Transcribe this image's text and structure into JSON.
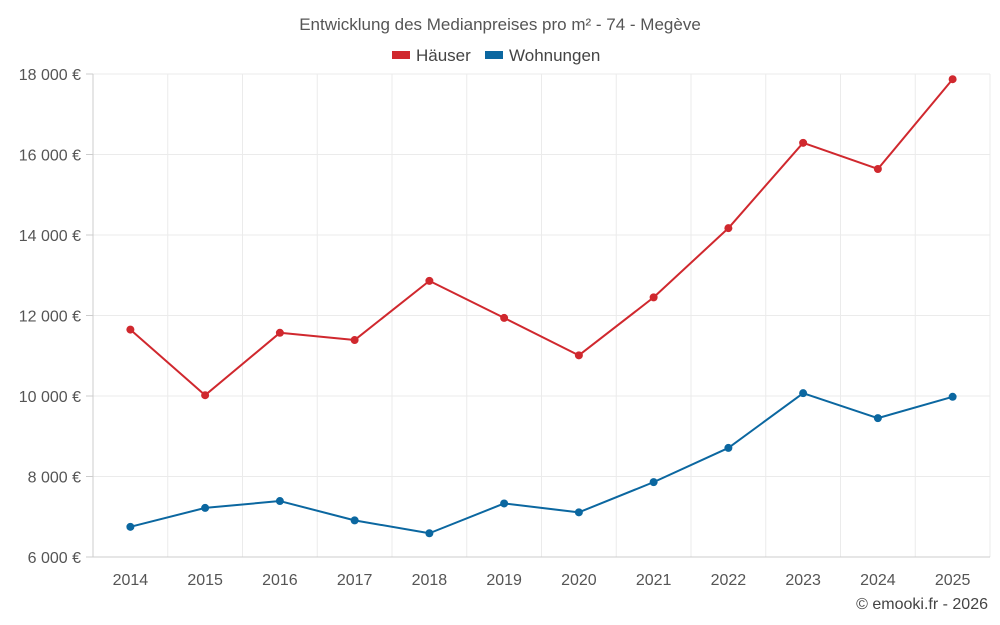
{
  "chart_data": {
    "type": "line",
    "title": "Entwicklung des Medianpreises pro m² - 74 - Megève",
    "xlabel": "",
    "ylabel": "",
    "categories": [
      "2014",
      "2015",
      "2016",
      "2017",
      "2018",
      "2019",
      "2020",
      "2021",
      "2022",
      "2023",
      "2024",
      "2025"
    ],
    "ylim": [
      6000,
      18000
    ],
    "yticks": [
      6000,
      8000,
      10000,
      12000,
      14000,
      16000,
      18000
    ],
    "ytick_labels": [
      "6 000 €",
      "8 000 €",
      "10 000 €",
      "12 000 €",
      "14 000 €",
      "16 000 €",
      "18 000 €"
    ],
    "grid": true,
    "legend_position": "top-center",
    "series": [
      {
        "name": "Häuser",
        "color": "#d0282e",
        "values": [
          11650,
          10020,
          11570,
          11390,
          12860,
          11940,
          11010,
          12450,
          14170,
          16290,
          15640,
          17870
        ]
      },
      {
        "name": "Wohnungen",
        "color": "#0b67a0",
        "values": [
          6750,
          7220,
          7390,
          6910,
          6590,
          7330,
          7110,
          7860,
          8710,
          10070,
          9450,
          9980
        ]
      }
    ]
  },
  "credit": "© emooki.fr - 2026"
}
